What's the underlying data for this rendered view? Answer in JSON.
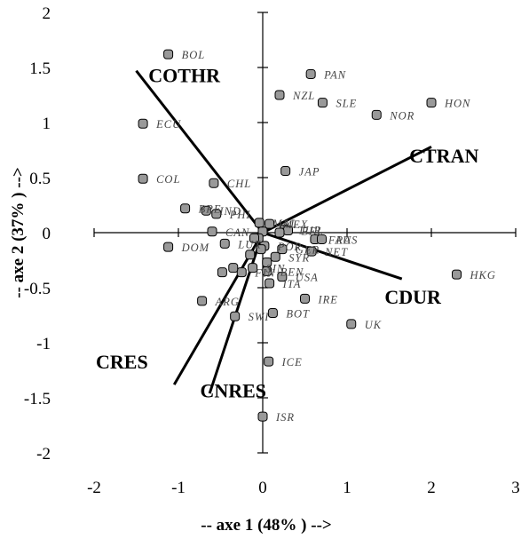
{
  "chart_data": {
    "type": "scatter",
    "title": "",
    "xlabel": "-- axe 1 (48% ) -->",
    "ylabel": "-- axe 2 (37% ) -->",
    "xlim": [
      -2,
      3
    ],
    "ylim": [
      -2,
      2
    ],
    "x_ticks": [
      -2,
      -1,
      0,
      1,
      2,
      3
    ],
    "y_ticks": [
      -2,
      -1.5,
      -1,
      -0.5,
      0,
      0.5,
      1,
      1.5,
      2
    ],
    "grid": false,
    "legend": "none",
    "marker_color": "#999999",
    "points": [
      {
        "label": "BOL",
        "x": -1.12,
        "y": 1.62
      },
      {
        "label": "PAN",
        "x": 0.57,
        "y": 1.44
      },
      {
        "label": "NZL",
        "x": 0.2,
        "y": 1.25
      },
      {
        "label": "SLE",
        "x": 0.71,
        "y": 1.18
      },
      {
        "label": "HON",
        "x": 2.0,
        "y": 1.18
      },
      {
        "label": "NOR",
        "x": 1.35,
        "y": 1.07
      },
      {
        "label": "ECU",
        "x": -1.42,
        "y": 0.99
      },
      {
        "label": "JAP",
        "x": 0.27,
        "y": 0.56
      },
      {
        "label": "COL",
        "x": -1.42,
        "y": 0.49
      },
      {
        "label": "CHL",
        "x": -0.58,
        "y": 0.45
      },
      {
        "label": "BRE",
        "x": -0.92,
        "y": 0.22
      },
      {
        "label": "IND",
        "x": -0.67,
        "y": 0.2
      },
      {
        "label": "PHI",
        "x": -0.55,
        "y": 0.17
      },
      {
        "label": "MAL",
        "x": -0.04,
        "y": 0.09
      },
      {
        "label": "MEX",
        "x": 0.08,
        "y": 0.08
      },
      {
        "label": "TUR",
        "x": 0.26,
        "y": 0.03
      },
      {
        "label": "BEL",
        "x": 0.3,
        "y": 0.02
      },
      {
        "label": "CAN",
        "x": -0.6,
        "y": 0.01
      },
      {
        "label": "FRA",
        "x": 0.62,
        "y": -0.06
      },
      {
        "label": "AUS",
        "x": 0.7,
        "y": -0.06
      },
      {
        "label": "DOM",
        "x": -1.12,
        "y": -0.13
      },
      {
        "label": "LUX",
        "x": -0.45,
        "y": -0.1
      },
      {
        "label": "POR",
        "x": 0.02,
        "y": -0.12
      },
      {
        "label": "GER",
        "x": 0.23,
        "y": -0.15
      },
      {
        "label": "NET",
        "x": 0.58,
        "y": -0.17
      },
      {
        "label": "SYR",
        "x": 0.15,
        "y": -0.22
      },
      {
        "label": "SIN",
        "x": -0.12,
        "y": -0.32
      },
      {
        "label": "FIN",
        "x": -0.25,
        "y": -0.36
      },
      {
        "label": "BEN",
        "x": 0.05,
        "y": -0.35
      },
      {
        "label": "USA",
        "x": 0.23,
        "y": -0.4
      },
      {
        "label": "ITA",
        "x": 0.08,
        "y": -0.46
      },
      {
        "label": "HKG",
        "x": 2.3,
        "y": -0.38
      },
      {
        "label": "IRE",
        "x": 0.5,
        "y": -0.6
      },
      {
        "label": "ARG",
        "x": -0.72,
        "y": -0.62
      },
      {
        "label": "BOT",
        "x": 0.12,
        "y": -0.73
      },
      {
        "label": "SWI",
        "x": -0.33,
        "y": -0.76
      },
      {
        "label": "UK",
        "x": 1.05,
        "y": -0.83
      },
      {
        "label": "ICE",
        "x": 0.07,
        "y": -1.17
      },
      {
        "label": "ISR",
        "x": 0.0,
        "y": -1.67
      },
      {
        "label": "",
        "x": 0.0,
        "y": 0.01
      },
      {
        "label": "",
        "x": -0.05,
        "y": -0.05
      },
      {
        "label": "",
        "x": -0.15,
        "y": -0.2
      },
      {
        "label": "",
        "x": -0.35,
        "y": -0.32
      },
      {
        "label": "",
        "x": -0.48,
        "y": -0.36
      },
      {
        "label": "",
        "x": -0.02,
        "y": -0.15
      },
      {
        "label": "",
        "x": 0.2,
        "y": 0.0
      },
      {
        "label": "",
        "x": 0.05,
        "y": -0.27
      },
      {
        "label": "",
        "x": -0.1,
        "y": -0.05
      }
    ],
    "vectors": [
      {
        "label": "COTHR",
        "x": -1.5,
        "y": 1.47,
        "label_x": -0.93,
        "label_y": 1.43
      },
      {
        "label": "CTRAN",
        "x": 2.0,
        "y": 0.78,
        "label_x": 2.15,
        "label_y": 0.7
      },
      {
        "label": "CDUR",
        "x": 1.65,
        "y": -0.42,
        "label_x": 1.78,
        "label_y": -0.58
      },
      {
        "label": "CRES",
        "x": -1.05,
        "y": -1.38,
        "label_x": -1.67,
        "label_y": -1.17
      },
      {
        "label": "CNRES",
        "x": -0.63,
        "y": -1.46,
        "label_x": -0.35,
        "label_y": -1.43
      }
    ]
  }
}
